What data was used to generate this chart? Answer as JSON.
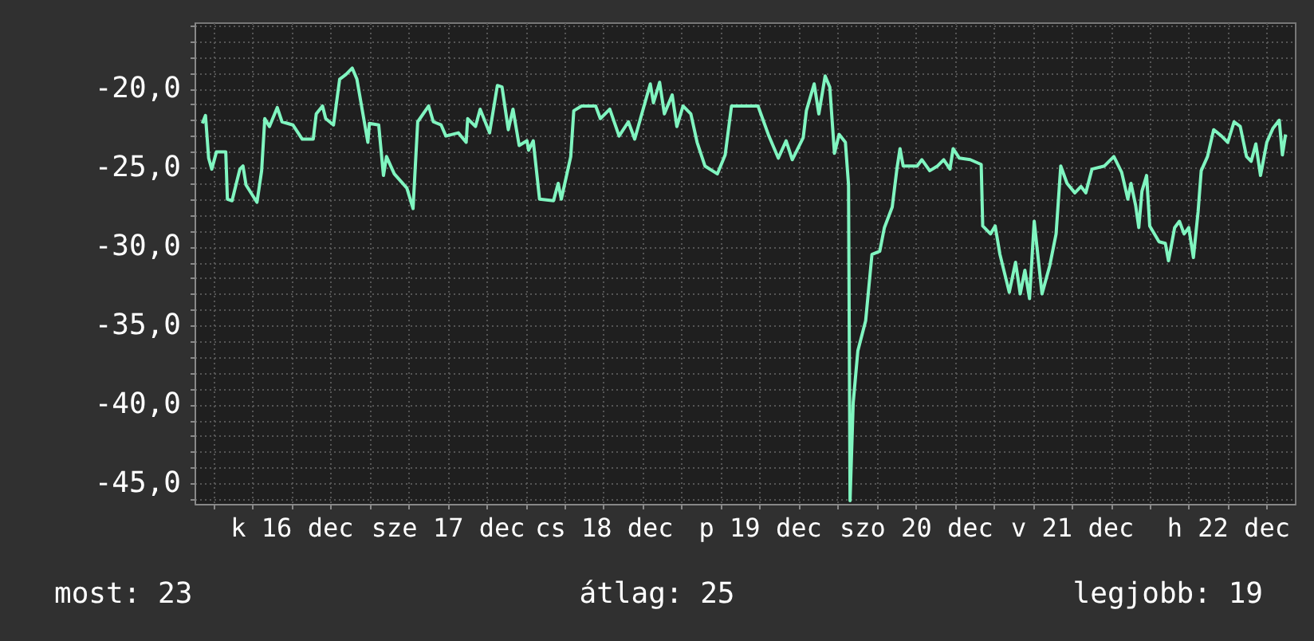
{
  "chart_data": {
    "type": "line",
    "x": [
      "--12-15T22:19",
      "--12-15T22:48",
      "--12-15T23:17",
      "--12-15T23:46",
      "--12-16T00:29",
      "--12-16T01:55",
      "--12-16T02:10",
      "--12-16T02:53",
      "--12-16T04:05",
      "--12-16T04:34",
      "--12-16T05:02",
      "--12-16T06:43",
      "--12-16T07:26",
      "--12-16T07:55",
      "--12-16T08:38",
      "--12-16T09:50",
      "--12-16T10:34",
      "--12-16T12:14",
      "--12-16T13:41",
      "--12-16T15:22",
      "--12-16T15:50",
      "--12-16T16:48",
      "--12-16T17:17",
      "--12-16T18:29",
      "--12-16T19:26",
      "--12-16T20:24",
      "--12-16T21:22",
      "--12-16T22:05",
      "--12-16T23:46",
      "--12-17T00:00",
      "--12-17T01:26",
      "--12-17T02:10",
      "--12-17T02:38",
      "--12-17T03:50",
      "--12-17T05:46",
      "--12-17T06:43",
      "--12-17T07:26",
      "--12-17T09:07",
      "--12-17T09:50",
      "--12-17T11:02",
      "--12-17T11:46",
      "--12-17T13:41",
      "--12-17T14:53",
      "--12-17T15:07",
      "--12-17T16:19",
      "--12-17T17:02",
      "--12-17T18:29",
      "--12-17T19:41",
      "--12-17T20:24",
      "--12-17T21:22",
      "--12-17T22:05",
      "--12-17T23:02",
      "--12-18T00:14",
      "--12-18T00:29",
      "--12-18T01:12",
      "--12-18T02:10",
      "--12-18T04:19",
      "--12-18T05:02",
      "--12-18T05:31",
      "--12-18T06:58",
      "--12-18T07:26",
      "--12-18T08:38",
      "--12-18T10:48",
      "--12-18T11:31",
      "--12-18T12:58",
      "--12-18T14:24",
      "--12-18T15:50",
      "--12-18T16:48",
      "--12-18T18:14",
      "--12-18T19:12",
      "--12-18T19:41",
      "--12-18T20:38",
      "--12-18T21:22",
      "--12-18T22:34",
      "--12-18T23:17",
      "--12-19T00:14",
      "--12-19T01:26",
      "--12-19T02:24",
      "--12-19T03:36",
      "--12-19T05:31",
      "--12-19T06:43",
      "--12-19T07:41",
      "--12-19T11:46",
      "--12-19T13:26",
      "--12-19T14:53",
      "--12-19T16:05",
      "--12-19T17:02",
      "--12-19T18:43",
      "--12-19T19:12",
      "--12-19T20:24",
      "--12-19T21:07",
      "--12-19T22:05",
      "--12-19T22:48",
      "--12-19T23:31",
      "--12-20T00:14",
      "--12-20T01:12",
      "--12-20T01:41",
      "--12-20T01:55",
      "--12-20T02:24",
      "--12-20T03:07",
      "--12-20T04:19",
      "--12-20T05:17",
      "--12-20T06:29",
      "--12-20T07:12",
      "--12-20T08:24",
      "--12-20T09:07",
      "--12-20T09:36",
      "--12-20T10:05",
      "--12-20T12:14",
      "--12-20T12:58",
      "--12-20T14:10",
      "--12-20T15:22",
      "--12-20T16:19",
      "--12-20T17:17",
      "--12-20T17:46",
      "--12-20T18:43",
      "--12-20T20:24",
      "--12-20T22:05",
      "--12-20T22:19",
      "--12-20T23:31",
      "--12-21T00:14",
      "--12-21T00:58",
      "--12-21T02:24",
      "--12-21T03:22",
      "--12-21T04:05",
      "--12-21T04:48",
      "--12-21T05:31",
      "--12-21T06:14",
      "--12-21T07:26",
      "--12-21T08:38",
      "--12-21T09:36",
      "--12-21T10:19",
      "--12-21T11:17",
      "--12-21T12:29",
      "--12-21T13:26",
      "--12-21T14:10",
      "--12-21T15:07",
      "--12-21T17:02",
      "--12-21T18:29",
      "--12-21T19:41",
      "--12-21T20:38",
      "--12-21T21:07",
      "--12-21T21:50",
      "--12-21T22:19",
      "--12-21T22:48",
      "--12-21T23:31",
      "--12-22T00:00",
      "--12-22T01:26",
      "--12-22T02:24",
      "--12-22T02:53",
      "--12-22T03:50",
      "--12-22T04:34",
      "--12-22T05:17",
      "--12-22T06:00",
      "--12-22T06:43",
      "--12-22T07:26",
      "--12-22T07:55",
      "--12-22T08:53",
      "--12-22T09:50",
      "--12-22T11:02",
      "--12-22T12:00",
      "--12-22T12:58",
      "--12-22T13:55",
      "--12-22T14:53",
      "--12-22T15:36",
      "--12-22T16:19",
      "--12-22T17:02",
      "--12-22T18:00",
      "--12-22T18:58",
      "--12-22T19:55",
      "--12-22T20:24",
      "--12-22T20:53"
    ],
    "series": [
      {
        "color": "#80f5c0",
        "values": [
          -22.2,
          -21.7,
          -24.4,
          -25.1,
          -24.0,
          -24.0,
          -27.0,
          -27.1,
          -25.1,
          -24.9,
          -26.1,
          -27.2,
          -25.2,
          -21.9,
          -22.4,
          -21.2,
          -22.1,
          -22.3,
          -23.2,
          -23.2,
          -21.6,
          -21.1,
          -21.9,
          -22.3,
          -19.4,
          -19.1,
          -18.7,
          -19.4,
          -23.4,
          -22.2,
          -22.3,
          -25.5,
          -24.3,
          -25.4,
          -26.3,
          -27.6,
          -22.1,
          -21.1,
          -22.1,
          -22.3,
          -23.0,
          -22.8,
          -23.4,
          -21.9,
          -22.4,
          -21.3,
          -22.8,
          -19.8,
          -19.9,
          -22.6,
          -21.3,
          -23.6,
          -23.3,
          -23.9,
          -23.3,
          -27.0,
          -27.1,
          -26.0,
          -27.0,
          -24.3,
          -21.4,
          -21.1,
          -21.1,
          -21.9,
          -21.3,
          -23.0,
          -22.1,
          -23.2,
          -21.1,
          -19.7,
          -20.9,
          -19.6,
          -21.6,
          -20.4,
          -22.4,
          -21.1,
          -21.6,
          -23.4,
          -24.9,
          -25.4,
          -24.2,
          -21.1,
          -21.1,
          -23.0,
          -24.4,
          -23.3,
          -24.5,
          -23.1,
          -21.4,
          -19.7,
          -21.6,
          -19.2,
          -19.9,
          -24.1,
          -22.9,
          -23.4,
          -26.1,
          -46.1,
          -39.9,
          -36.6,
          -34.7,
          -30.5,
          -30.3,
          -28.8,
          -27.5,
          -25.1,
          -23.8,
          -24.9,
          -24.9,
          -24.5,
          -25.2,
          -24.9,
          -24.5,
          -25.1,
          -23.8,
          -24.4,
          -24.5,
          -24.8,
          -28.7,
          -29.2,
          -28.7,
          -30.5,
          -32.9,
          -31.0,
          -33.0,
          -31.5,
          -33.3,
          -28.4,
          -33.0,
          -31.2,
          -29.2,
          -24.9,
          -26.0,
          -26.6,
          -26.2,
          -26.6,
          -25.1,
          -24.9,
          -24.3,
          -25.3,
          -27.0,
          -26.0,
          -27.4,
          -28.8,
          -26.5,
          -25.5,
          -28.7,
          -29.7,
          -29.8,
          -30.9,
          -28.8,
          -28.4,
          -29.2,
          -28.8,
          -30.7,
          -27.8,
          -25.2,
          -24.3,
          -22.6,
          -23.0,
          -23.4,
          -22.1,
          -22.4,
          -24.3,
          -24.6,
          -23.5,
          -25.5,
          -23.4,
          -22.5,
          -22.0,
          -24.2,
          -22.9
        ]
      }
    ],
    "xlim": [
      "--12-15T21:07",
      "--12-22T22:19"
    ],
    "xticks": [
      {
        "value": "--12-16T00:00",
        "label": null
      },
      {
        "value": "--12-16T06:00",
        "label": null
      },
      {
        "value": "--12-16T12:00",
        "label": "k 16 dec"
      },
      {
        "value": "--12-16T18:00",
        "label": null
      },
      {
        "value": "--12-17T00:00",
        "label": null
      },
      {
        "value": "--12-17T06:00",
        "label": null
      },
      {
        "value": "--12-17T12:00",
        "label": "sze 17 dec"
      },
      {
        "value": "--12-17T18:00",
        "label": null
      },
      {
        "value": "--12-18T00:00",
        "label": null
      },
      {
        "value": "--12-18T06:00",
        "label": null
      },
      {
        "value": "--12-18T12:00",
        "label": "cs 18 dec"
      },
      {
        "value": "--12-18T18:00",
        "label": null
      },
      {
        "value": "--12-19T00:00",
        "label": null
      },
      {
        "value": "--12-19T06:00",
        "label": null
      },
      {
        "value": "--12-19T12:00",
        "label": "p 19 dec"
      },
      {
        "value": "--12-19T18:00",
        "label": null
      },
      {
        "value": "--12-20T00:00",
        "label": null
      },
      {
        "value": "--12-20T06:00",
        "label": null
      },
      {
        "value": "--12-20T12:00",
        "label": "szo 20 dec"
      },
      {
        "value": "--12-20T18:00",
        "label": null
      },
      {
        "value": "--12-21T00:00",
        "label": null
      },
      {
        "value": "--12-21T06:00",
        "label": null
      },
      {
        "value": "--12-21T12:00",
        "label": "v 21 dec"
      },
      {
        "value": "--12-21T18:00",
        "label": null
      },
      {
        "value": "--12-22T00:00",
        "label": null
      },
      {
        "value": "--12-22T06:00",
        "label": null
      },
      {
        "value": "--12-22T12:00",
        "label": "h 22 dec"
      },
      {
        "value": "--12-22T18:00",
        "label": null
      }
    ],
    "ylim": [
      -46.3,
      -15.8
    ],
    "yticks": [
      {
        "value": -46,
        "label": null
      },
      {
        "value": -45,
        "label": "-45,0"
      },
      {
        "value": -44,
        "label": null
      },
      {
        "value": -43,
        "label": null
      },
      {
        "value": -42,
        "label": null
      },
      {
        "value": -41,
        "label": null
      },
      {
        "value": -40,
        "label": "-40,0"
      },
      {
        "value": -39,
        "label": null
      },
      {
        "value": -38,
        "label": null
      },
      {
        "value": -37,
        "label": null
      },
      {
        "value": -36,
        "label": null
      },
      {
        "value": -35,
        "label": "-35,0"
      },
      {
        "value": -34,
        "label": null
      },
      {
        "value": -33,
        "label": null
      },
      {
        "value": -32,
        "label": null
      },
      {
        "value": -31,
        "label": null
      },
      {
        "value": -30,
        "label": "-30,0"
      },
      {
        "value": -29,
        "label": null
      },
      {
        "value": -28,
        "label": null
      },
      {
        "value": -27,
        "label": null
      },
      {
        "value": -26,
        "label": null
      },
      {
        "value": -25,
        "label": "-25,0"
      },
      {
        "value": -24,
        "label": null
      },
      {
        "value": -23,
        "label": null
      },
      {
        "value": -22,
        "label": null
      },
      {
        "value": -21,
        "label": null
      },
      {
        "value": -20,
        "label": "-20,0"
      },
      {
        "value": -19,
        "label": null
      },
      {
        "value": -18,
        "label": null
      },
      {
        "value": -17,
        "label": null
      },
      {
        "value": -16,
        "label": null
      }
    ],
    "grid": true,
    "annotations": [
      "most: 23",
      "átlag: 25",
      "legjobb: 19"
    ]
  }
}
